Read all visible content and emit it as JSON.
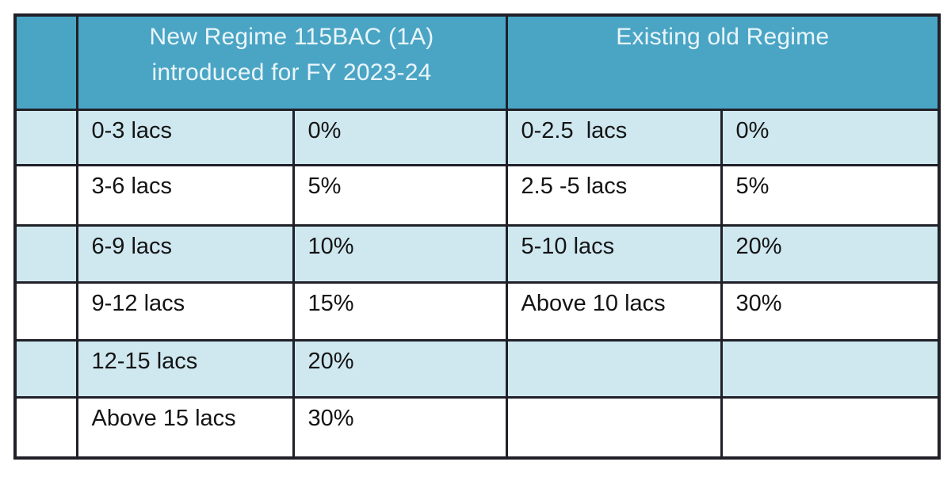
{
  "colors": {
    "page_bg": "#ffffff",
    "header_bg": "#4aa5c5",
    "header_text": "#eaf5f9",
    "row_alt_bg": "#cfe8f0",
    "row_bg": "#ffffff",
    "border": "#202028",
    "body_text": "#141414"
  },
  "table": {
    "header": {
      "corner": "",
      "new_regime_line1": "New Regime 115BAC (1A)",
      "new_regime_line2": "introduced for FY 2023-24",
      "old_regime": "Existing old Regime"
    },
    "rows": [
      {
        "index": "",
        "new_slab": "0-3 lacs",
        "new_rate": "0%",
        "old_slab": "0-2.5  lacs",
        "old_rate": "0%"
      },
      {
        "index": "",
        "new_slab": "3-6 lacs",
        "new_rate": "5%",
        "old_slab": "2.5 -5 lacs",
        "old_rate": "5%"
      },
      {
        "index": "",
        "new_slab": "6-9 lacs",
        "new_rate": "10%",
        "old_slab": "5-10 lacs",
        "old_rate": "20%"
      },
      {
        "index": "",
        "new_slab": "9-12 lacs",
        "new_rate": "15%",
        "old_slab": "Above 10 lacs",
        "old_rate": "30%"
      },
      {
        "index": "",
        "new_slab": "12-15 lacs",
        "new_rate": "20%",
        "old_slab": "",
        "old_rate": ""
      },
      {
        "index": "",
        "new_slab": "Above 15 lacs",
        "new_rate": "30%",
        "old_slab": "",
        "old_rate": ""
      }
    ]
  },
  "chart_data": {
    "type": "table",
    "column_groups": [
      {
        "label": "",
        "span": 1
      },
      {
        "label": "New Regime 115BAC (1A) introduced for FY 2023-24",
        "span": 2
      },
      {
        "label": "Existing old Regime",
        "span": 2
      }
    ],
    "rows": [
      [
        "",
        "0-3 lacs",
        "0%",
        "0-2.5  lacs",
        "0%"
      ],
      [
        "",
        "3-6 lacs",
        "5%",
        "2.5 -5 lacs",
        "5%"
      ],
      [
        "",
        "6-9 lacs",
        "10%",
        "5-10 lacs",
        "20%"
      ],
      [
        "",
        "9-12 lacs",
        "15%",
        "Above 10 lacs",
        "30%"
      ],
      [
        "",
        "12-15 lacs",
        "20%",
        "",
        ""
      ],
      [
        "",
        "Above 15 lacs",
        "30%",
        "",
        ""
      ]
    ],
    "layout": {
      "striped_rows": true,
      "merged_group_headers": true,
      "grid": "on"
    }
  }
}
